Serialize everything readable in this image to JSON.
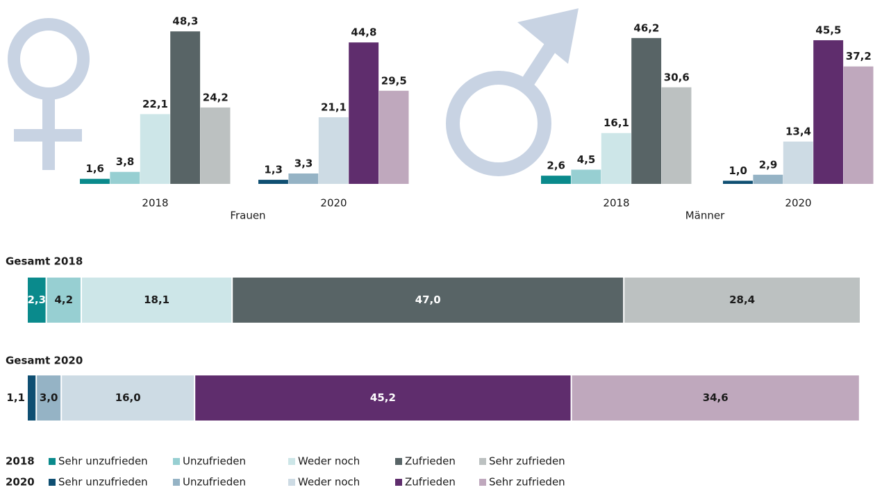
{
  "chart_data": [
    {
      "type": "bar",
      "xlabel": "Frauen",
      "categories": [
        "2018",
        "2020"
      ],
      "series": [
        {
          "values": [
            1.6,
            1.3
          ],
          "value_labels": [
            "1,6",
            "1,3"
          ]
        },
        {
          "values": [
            3.8,
            3.3
          ],
          "value_labels": [
            "3,8",
            "3,3"
          ]
        },
        {
          "values": [
            22.1,
            21.1
          ],
          "value_labels": [
            "22,1",
            "21,1"
          ]
        },
        {
          "values": [
            48.3,
            44.8
          ],
          "value_labels": [
            "48,3",
            "44,8"
          ]
        },
        {
          "values": [
            24.2,
            29.5
          ],
          "value_labels": [
            "24,2",
            "29,5"
          ]
        }
      ]
    },
    {
      "type": "bar",
      "xlabel": "Männer",
      "categories": [
        "2018",
        "2020"
      ],
      "series": [
        {
          "values": [
            2.6,
            1.0
          ],
          "value_labels": [
            "2,6",
            "1,0"
          ]
        },
        {
          "values": [
            4.5,
            2.9
          ],
          "value_labels": [
            "4,5",
            "2,9"
          ]
        },
        {
          "values": [
            16.1,
            13.4
          ],
          "value_labels": [
            "16,1",
            "13,4"
          ]
        },
        {
          "values": [
            46.2,
            45.5
          ],
          "value_labels": [
            "46,2",
            "45,5"
          ]
        },
        {
          "values": [
            30.6,
            37.2
          ],
          "value_labels": [
            "30,6",
            "37,2"
          ]
        }
      ]
    },
    {
      "type": "stacked_bar",
      "title": "Gesamt 2018",
      "legend_row": 0,
      "values": [
        2.3,
        4.2,
        18.1,
        47.0,
        28.4
      ],
      "value_labels": [
        "2,3",
        "4,2",
        "18,1",
        "47,0",
        "28,4"
      ]
    },
    {
      "type": "stacked_bar",
      "title": "Gesamt 2020",
      "legend_row": 1,
      "values": [
        1.1,
        3.0,
        16.0,
        45.2,
        34.6
      ],
      "value_labels": [
        "1,1",
        "3,0",
        "16,0",
        "45,2",
        "34,6"
      ]
    }
  ],
  "legend": {
    "rows": [
      {
        "label": "2018",
        "entries": [
          {
            "name": "Sehr unzufrieden",
            "color": "#0a8a8c"
          },
          {
            "name": "Unzufrieden",
            "color": "#97cfd2"
          },
          {
            "name": "Weder noch",
            "color": "#cde6e8"
          },
          {
            "name": "Zufrieden",
            "color": "#586466"
          },
          {
            "name": "Sehr zufrieden",
            "color": "#bcc1c1"
          }
        ]
      },
      {
        "label": "2020",
        "entries": [
          {
            "name": "Sehr unzufrieden",
            "color": "#0f4f72"
          },
          {
            "name": "Unzufrieden",
            "color": "#95b3c5"
          },
          {
            "name": "Weder noch",
            "color": "#cddbe4"
          },
          {
            "name": "Zufrieden",
            "color": "#5f2d6d"
          },
          {
            "name": "Sehr zufrieden",
            "color": "#bfa8bd"
          }
        ]
      }
    ]
  }
}
